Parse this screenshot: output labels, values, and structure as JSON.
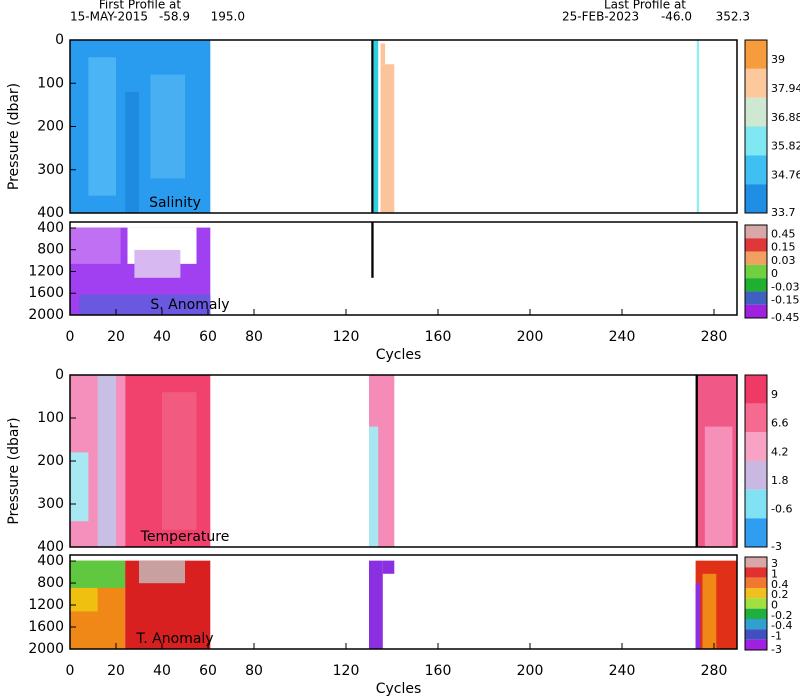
{
  "header": {
    "first_label": "First Profile at",
    "first_date": "15-MAY-2015",
    "first_lat": "-58.9",
    "first_lon": "195.0",
    "last_label": "Last Profile at",
    "last_date": "25-FEB-2023",
    "last_lat": "-46.0",
    "last_lon": "352.3"
  },
  "chart_data": [
    {
      "type": "heatmap",
      "label": "Salinity",
      "ylabel": "Pressure (dbar)",
      "xlim": [
        0,
        290
      ],
      "ylim": [
        0,
        400
      ],
      "y_reversed": true,
      "yticks": [
        0,
        100,
        200,
        300,
        400
      ],
      "colorbar": {
        "labels": [
          39,
          37.94,
          36.88,
          35.82,
          34.76,
          33.7
        ],
        "colors": [
          "#f79c3c",
          "#fcc89c",
          "#cfe8d2",
          "#80e8f2",
          "#40bff2",
          "#1f8fe6"
        ]
      }
    },
    {
      "type": "heatmap",
      "label": "S. Anomaly",
      "xlabel": "Cycles",
      "xlim": [
        0,
        290
      ],
      "ylim": [
        290,
        2000
      ],
      "y_reversed": true,
      "xticks": [
        0,
        20,
        40,
        60,
        80,
        120,
        160,
        200,
        240,
        280
      ],
      "yticks": [
        400,
        800,
        1200,
        1600,
        2000
      ],
      "colorbar": {
        "labels": [
          0.45,
          0.15,
          0.03,
          0,
          -0.03,
          -0.15,
          -0.45
        ],
        "colors": [
          "#d8a8a8",
          "#e03838",
          "#f0a060",
          "#70d040",
          "#20b030",
          "#4060c0",
          "#a020e0"
        ]
      }
    },
    {
      "type": "heatmap",
      "label": "Temperature",
      "ylabel": "Pressure (dbar)",
      "xlim": [
        0,
        290
      ],
      "ylim": [
        0,
        400
      ],
      "y_reversed": true,
      "yticks": [
        0,
        100,
        200,
        300,
        400
      ],
      "colorbar": {
        "labels": [
          9,
          6.6,
          4.2,
          1.8,
          -0.6,
          -3
        ],
        "colors": [
          "#f03a66",
          "#f56a90",
          "#f8a2c4",
          "#c8b8e2",
          "#80e2f2",
          "#2f9ef0"
        ]
      }
    },
    {
      "type": "heatmap",
      "label": "T. Anomaly",
      "xlabel": "Cycles",
      "xlim": [
        0,
        290
      ],
      "ylim": [
        290,
        2000
      ],
      "y_reversed": true,
      "xticks": [
        0,
        20,
        40,
        60,
        80,
        120,
        160,
        200,
        240,
        280
      ],
      "yticks": [
        400,
        800,
        1200,
        1600,
        2000
      ],
      "colorbar": {
        "labels": [
          3,
          1,
          0.4,
          0.2,
          0,
          -0.2,
          -0.4,
          -1,
          -3
        ],
        "colors": [
          "#d8a8a8",
          "#e03030",
          "#f07830",
          "#f0c020",
          "#a0e040",
          "#20b040",
          "#30a0d0",
          "#4050c0",
          "#a020e0"
        ]
      }
    }
  ]
}
